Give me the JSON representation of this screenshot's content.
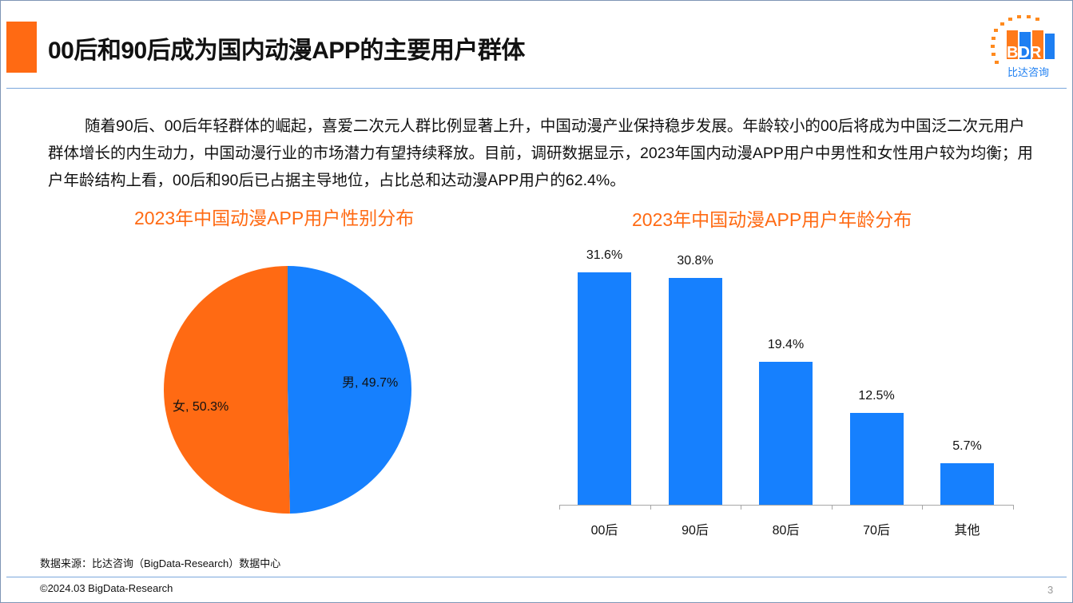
{
  "header": {
    "title": "00后和90后成为国内动漫APP的主要用户群体"
  },
  "logo": {
    "mark": "BDR",
    "name": "比达咨询"
  },
  "paragraph": "随着90后、00后年轻群体的崛起，喜爱二次元人群比例显著上升，中国动漫产业保持稳步发展。年龄较小的00后将成为中国泛二次元用户群体增长的内生动力，中国动漫行业的市场潜力有望持续释放。目前，调研数据显示，2023年国内动漫APP用户中男性和女性用户较为均衡；用户年龄结构上看，00后和90后已占据主导地位，占比总和达动漫APP用户的62.4%。",
  "chart_data": [
    {
      "type": "pie",
      "title": "2023年中国动漫APP用户性别分布",
      "slices": [
        {
          "label": "男",
          "value": 49.7,
          "display": "男, 49.7%",
          "color": "#1680fe"
        },
        {
          "label": "女",
          "value": 50.3,
          "display": "女, 50.3%",
          "color": "#ff6a13"
        }
      ]
    },
    {
      "type": "bar",
      "title": "2023年中国动漫APP用户年龄分布",
      "categories": [
        "00后",
        "90后",
        "80后",
        "70后",
        "其他"
      ],
      "values": [
        31.6,
        30.8,
        19.4,
        12.5,
        5.7
      ],
      "labels": [
        "31.6%",
        "30.8%",
        "19.4%",
        "12.5%",
        "5.7%"
      ],
      "unit": "%",
      "color": "#1680fe"
    }
  ],
  "source": "数据来源：比达咨询（BigData-Research）数据中心",
  "footer": {
    "copyright": "©2024.03 BigData-Research",
    "page": "3"
  }
}
